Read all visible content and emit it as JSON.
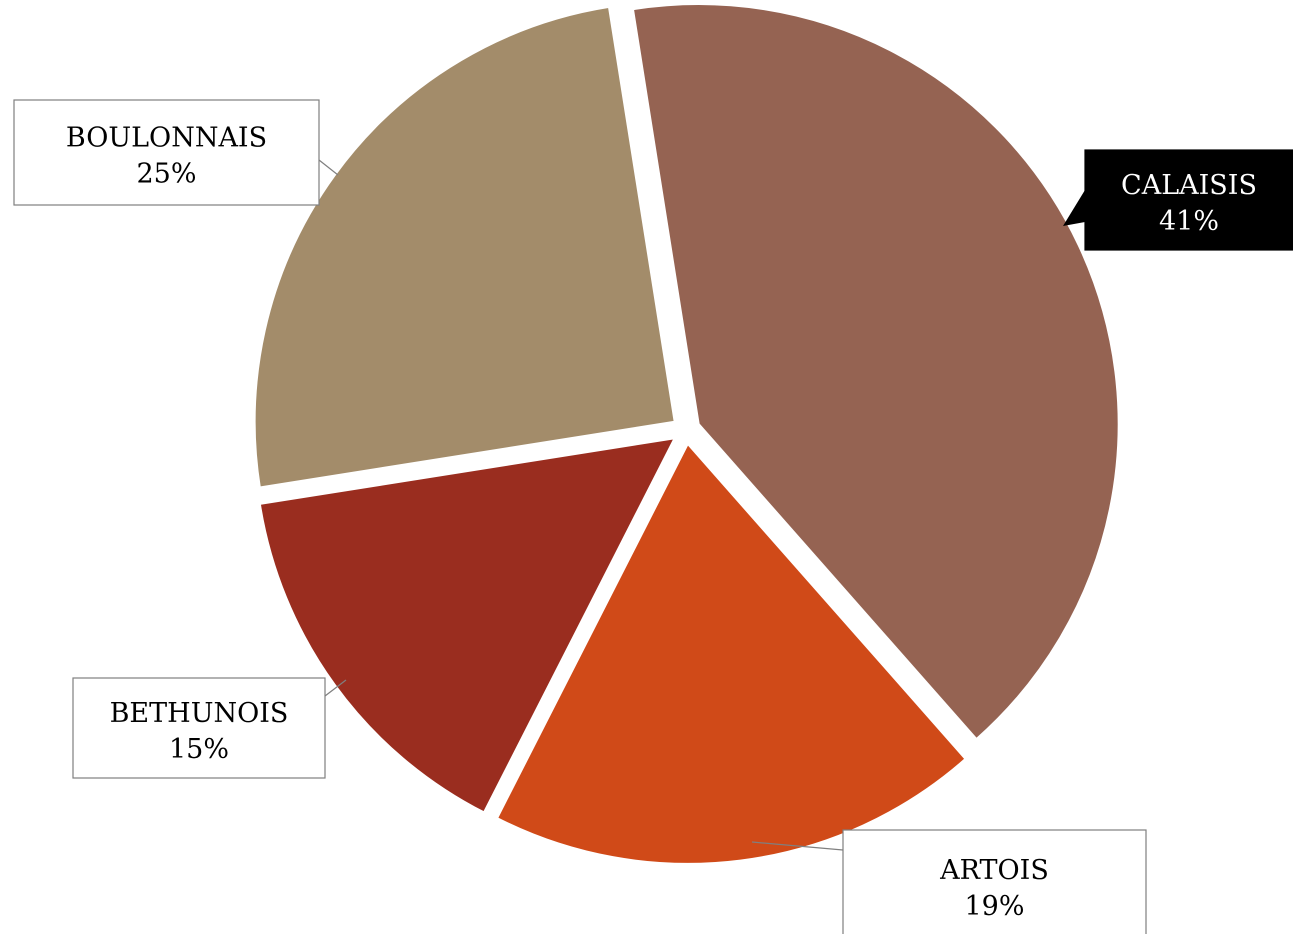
{
  "chart_data": {
    "type": "pie",
    "title": "",
    "slices": [
      {
        "name": "CALAISIS",
        "value": 41,
        "label": "41%",
        "color": "#956352"
      },
      {
        "name": "ARTOIS",
        "value": 19,
        "label": "19%",
        "color": "#D04A18"
      },
      {
        "name": "BETHUNOIS",
        "value": 15,
        "label": "15%",
        "color": "#9A2D1F"
      },
      {
        "name": "BOULONNAIS",
        "value": 25,
        "label": "25%",
        "color": "#A38C6A"
      }
    ],
    "highlighted_label": "CALAISIS",
    "legend": "none",
    "data_labels": "callouts"
  }
}
